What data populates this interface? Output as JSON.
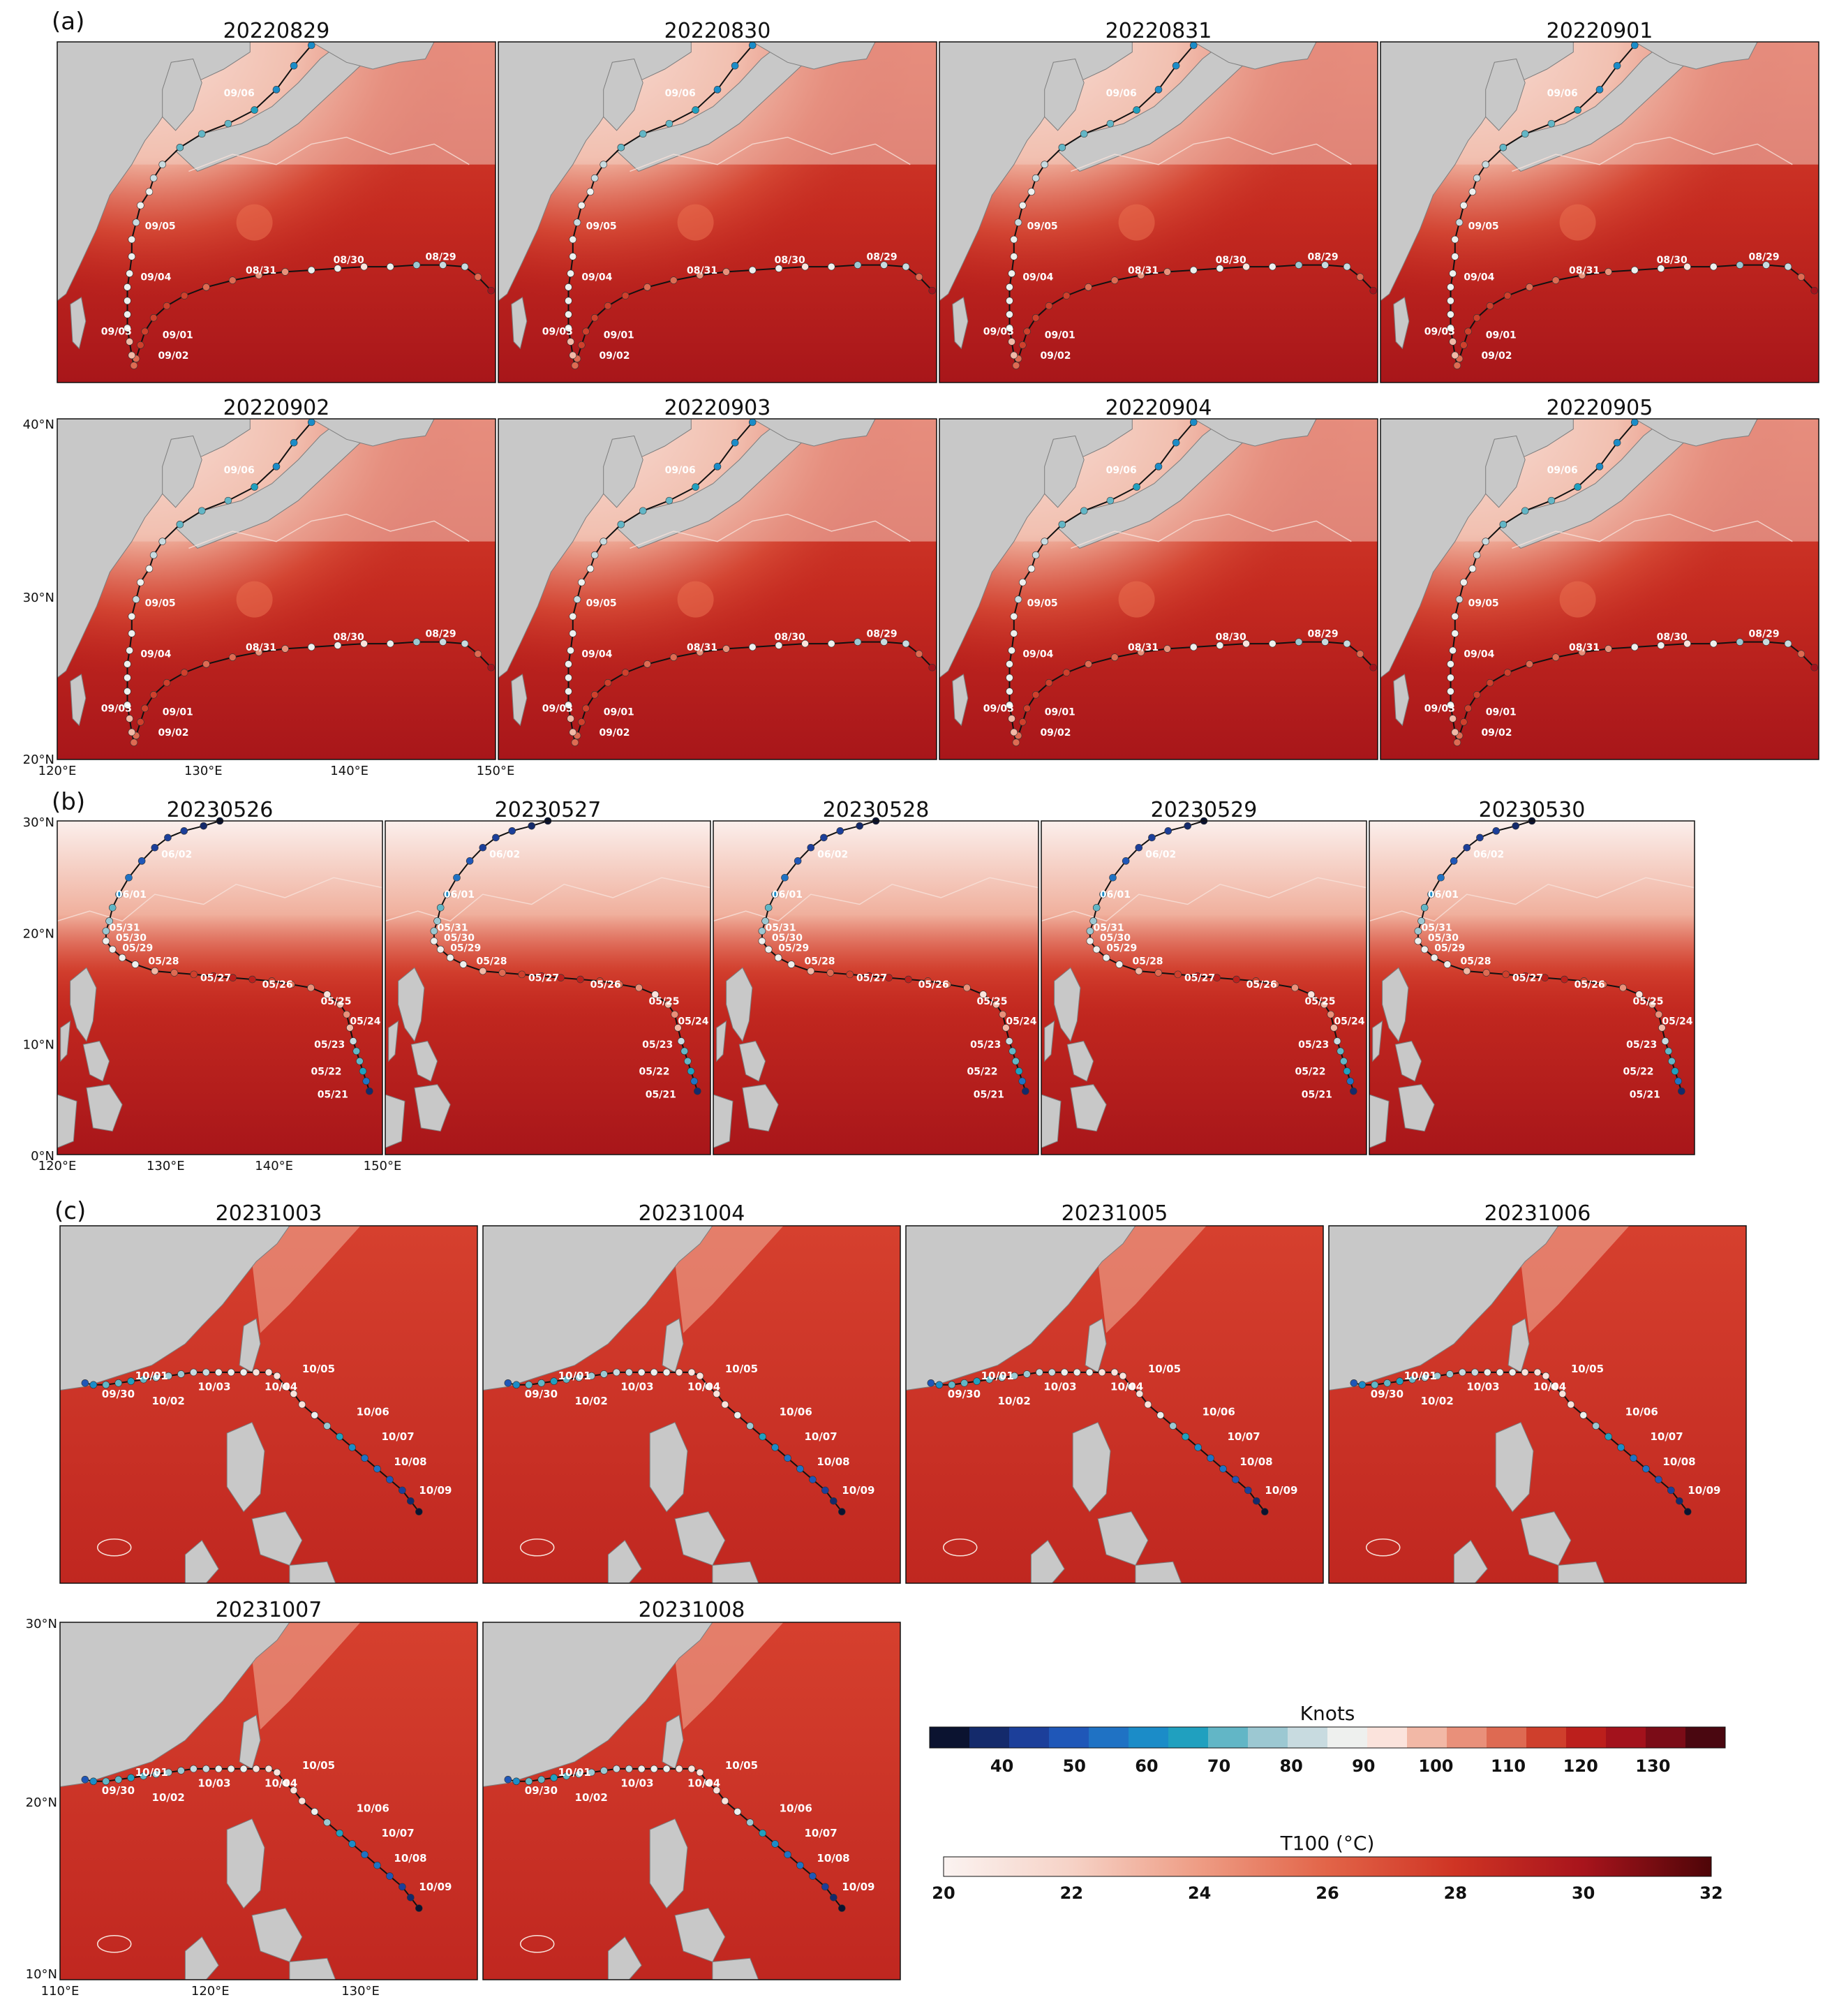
{
  "panel_a": {
    "label": "(a)",
    "dates": [
      "20220829",
      "20220830",
      "20220831",
      "20220901",
      "20220902",
      "20220903",
      "20220904",
      "20220905"
    ],
    "track_labels": [
      "09/06",
      "09/05",
      "09/04",
      "09/03",
      "09/02",
      "09/01",
      "08/31",
      "08/30",
      "08/29"
    ],
    "lat_ticks": [
      "40°N",
      "30°N",
      "20°N"
    ],
    "lon_ticks": [
      "120°E",
      "130°E",
      "140°E",
      "150°E"
    ]
  },
  "panel_b": {
    "label": "(b)",
    "dates": [
      "20230526",
      "20230527",
      "20230528",
      "20230529",
      "20230530"
    ],
    "track_labels": [
      "06/02",
      "06/01",
      "05/31",
      "05/30",
      "05/29",
      "05/28",
      "05/27",
      "05/26",
      "05/25",
      "05/24",
      "05/23",
      "05/22",
      "05/21"
    ],
    "lat_ticks": [
      "30°N",
      "20°N",
      "10°N",
      "0°N"
    ],
    "lon_ticks": [
      "120°E",
      "130°E",
      "140°E",
      "150°E"
    ]
  },
  "panel_c": {
    "label": "(c)",
    "dates": [
      "20231003",
      "20231004",
      "20231005",
      "20231006",
      "20231007",
      "20231008"
    ],
    "track_labels": [
      "10/09",
      "10/08",
      "10/07",
      "10/06",
      "10/05",
      "10/04",
      "10/03",
      "10/02",
      "10/01",
      "09/30"
    ],
    "lat_ticks": [
      "30°N",
      "20°N",
      "10°N"
    ],
    "lon_ticks": [
      "110°E",
      "120°E",
      "130°E"
    ]
  },
  "colorbar_knots": {
    "title": "Knots",
    "ticks": [
      "40",
      "50",
      "60",
      "70",
      "80",
      "90",
      "100",
      "110",
      "120",
      "130"
    ],
    "colors": [
      "#0b1330",
      "#142a6b",
      "#1c3f9a",
      "#1f57b8",
      "#1f72c4",
      "#1b8cc8",
      "#20a0bf",
      "#62b6c6",
      "#9cc8d2",
      "#c8dbe0",
      "#eef0ee",
      "#fbe3dc",
      "#f2b8a6",
      "#e9907a",
      "#de6a52",
      "#cf3f2c",
      "#bc1f1c",
      "#a3121c",
      "#7b0c17",
      "#4a0710"
    ]
  },
  "colorbar_t100": {
    "title": "T100 (°C)",
    "ticks": [
      "20",
      "22",
      "24",
      "26",
      "28",
      "30",
      "32"
    ],
    "stops": [
      "#fbf3f1",
      "#f6d2c6",
      "#ee9c84",
      "#e26448",
      "#cf3424",
      "#a8141c",
      "#4e0508"
    ]
  },
  "colors": {
    "land": "#c8c8c8",
    "ocean_warm": "#c42a20",
    "ocean_cool": "#f6ddd6",
    "track_line": "#111111"
  }
}
